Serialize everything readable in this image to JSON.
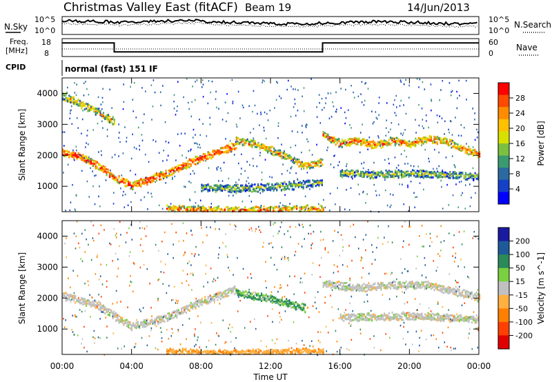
{
  "header": {
    "station": "Christmas Valley East (fitACF)",
    "beam": "Beam 19",
    "date": "14/Jun/2013"
  },
  "panels": {
    "nsky": {
      "left_label": "N.Sky",
      "ticks": [
        "10^5",
        "10^0"
      ],
      "right_label": "N.Search",
      "right_ticks": [
        "10^5",
        "10^0"
      ]
    },
    "freq": {
      "left_label_1": "Freq.",
      "left_label_2": "[MHz]",
      "ticks": [
        "18",
        "8"
      ],
      "right_label": "Nave",
      "right_ticks": [
        "60",
        "0"
      ],
      "steps": [
        {
          "from": 0,
          "to": 3.0,
          "value": 16
        },
        {
          "from": 3.0,
          "to": 15.0,
          "value": 11
        },
        {
          "from": 15.0,
          "to": 24,
          "value": 16
        }
      ]
    },
    "cpid": {
      "label": "CPID",
      "mode": "normal (fast) 151 IF"
    }
  },
  "colorbars": {
    "power": {
      "label": "Power [dB]",
      "ticks": [
        "28",
        "24",
        "20",
        "16",
        "12",
        "8",
        "4"
      ],
      "colors": [
        "#ff0000",
        "#ff4a00",
        "#ff8c00",
        "#ffc000",
        "#d8e000",
        "#7cc040",
        "#3a9a70",
        "#2a6aa0",
        "#1540c8",
        "#0000ff"
      ]
    },
    "velocity": {
      "label": "Velocity [m s^-1]",
      "ticks": [
        "200",
        "100",
        "50",
        "15",
        "-15",
        "-50",
        "-100",
        "-200"
      ],
      "colors": [
        "#1a1aa0",
        "#1e5a9a",
        "#2a8a5a",
        "#7ad040",
        "#c0c0c0",
        "#ffb040",
        "#ff8000",
        "#ff4000",
        "#e00000"
      ]
    }
  },
  "chart_data": {
    "type": "heatmap",
    "xlabel": "Time UT",
    "ylabel": "Slant Range [km]",
    "xticks": [
      "00:00",
      "04:00",
      "08:00",
      "12:00",
      "16:00",
      "20:00",
      "00:00"
    ],
    "yticks": [
      "1000",
      "2000",
      "3000",
      "4000"
    ],
    "xlim": [
      0,
      24
    ],
    "ylim": [
      180,
      4500
    ],
    "power_bands": [
      {
        "t": [
          0,
          1,
          2,
          3,
          4,
          5,
          6,
          7,
          8,
          9,
          10
        ],
        "r": [
          2100,
          2000,
          1700,
          1300,
          1050,
          1250,
          1450,
          1700,
          1950,
          2150,
          2350
        ],
        "value": 22
      },
      {
        "t": [
          0,
          1,
          2,
          3
        ],
        "r": [
          3950,
          3700,
          3450,
          3100
        ],
        "value": 14
      },
      {
        "t": [
          10,
          11,
          12,
          13,
          14,
          15
        ],
        "r": [
          2500,
          2400,
          2200,
          1950,
          1700,
          1800
        ],
        "value": 16
      },
      {
        "t": [
          15,
          16,
          17,
          18,
          19,
          20,
          21,
          22,
          23,
          24
        ],
        "r": [
          2700,
          2400,
          2500,
          2350,
          2500,
          2400,
          2550,
          2500,
          2250,
          2050
        ],
        "value": 18
      },
      {
        "t": [
          16,
          18,
          20,
          22,
          24
        ],
        "r": [
          1450,
          1400,
          1450,
          1400,
          1350
        ],
        "value": 10
      },
      {
        "t": [
          8,
          10,
          12,
          14,
          15
        ],
        "r": [
          1000,
          950,
          1000,
          1100,
          1150
        ],
        "value": 10
      },
      {
        "t": [
          6,
          9,
          12,
          15
        ],
        "r": [
          300,
          250,
          260,
          300
        ],
        "value": 18
      }
    ],
    "velocity_bands": [
      {
        "t": [
          0,
          2,
          4,
          6,
          8,
          10
        ],
        "r": [
          2100,
          1800,
          1100,
          1400,
          1900,
          2300
        ],
        "value": 0
      },
      {
        "t": [
          15,
          17,
          19,
          21,
          24
        ],
        "r": [
          2500,
          2350,
          2450,
          2450,
          2050
        ],
        "value": 0
      },
      {
        "t": [
          16,
          20,
          24
        ],
        "r": [
          1400,
          1450,
          1350
        ],
        "value": 0
      },
      {
        "t": [
          10,
          12,
          14
        ],
        "r": [
          2200,
          2000,
          1700
        ],
        "value": 30
      },
      {
        "t": [
          6,
          8,
          10,
          13,
          15
        ],
        "r": [
          300,
          250,
          220,
          260,
          300
        ],
        "value": -40
      }
    ]
  }
}
